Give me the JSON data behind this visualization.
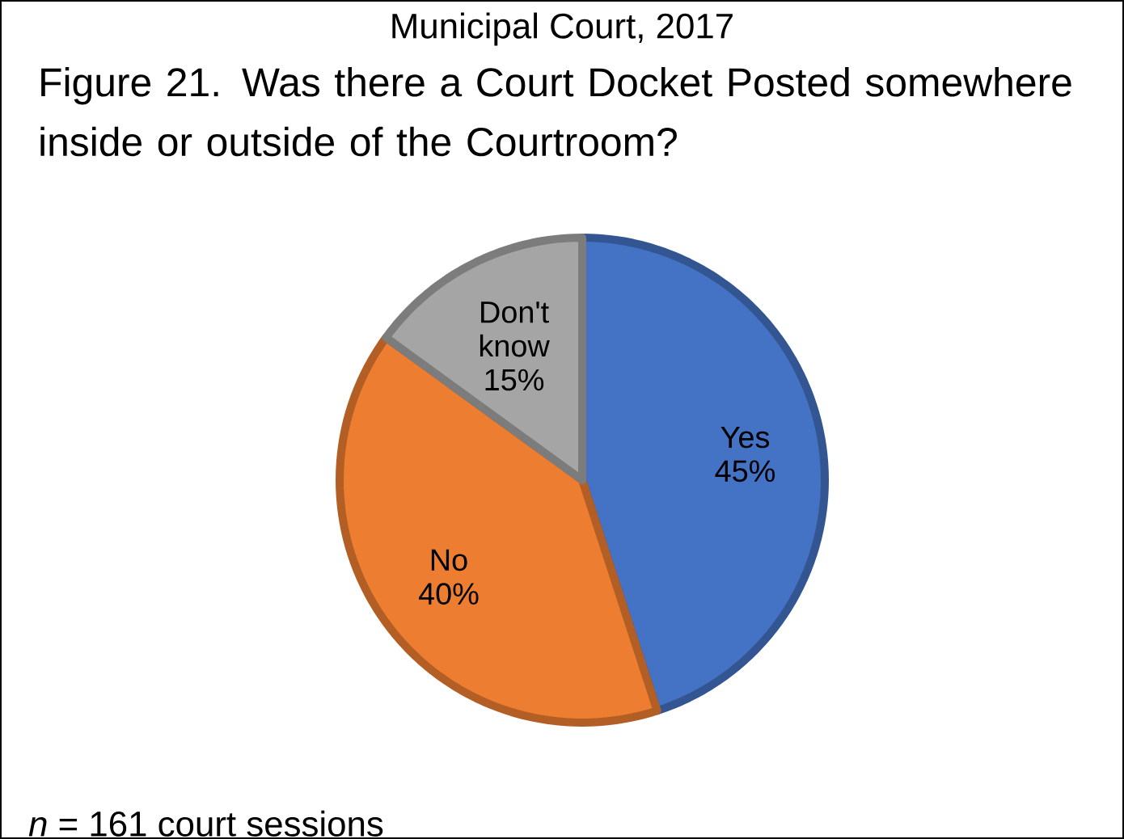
{
  "chart_data": {
    "type": "pie",
    "title": "Municipal Court, 2017",
    "subtitle": "Figure 21. Was there a Court Docket Posted somewhere inside or outside of the Courtroom?",
    "categories": [
      "Yes",
      "No",
      "Don't know"
    ],
    "values": [
      45,
      40,
      15
    ],
    "value_labels": [
      "45%",
      "40%",
      "15%"
    ],
    "colors": [
      "#4472c4",
      "#ed7d31",
      "#a5a5a5"
    ],
    "annotations": [
      "*n* = 161 court sessions"
    ]
  }
}
